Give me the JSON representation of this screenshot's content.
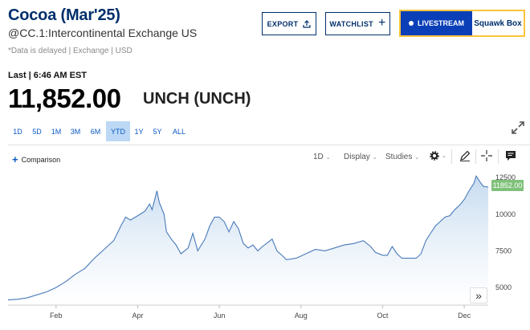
{
  "header": {
    "title": "Cocoa (Mar'25)",
    "symbol": "@CC.1:Intercontinental Exchange US",
    "delayed_note": "*Data is delayed | Exchange | USD"
  },
  "actions": {
    "export_label": "EXPORT",
    "watchlist_label": "WATCHLIST",
    "livestream_label": "LIVESTREAM",
    "squawk_label": "Squawk Box",
    "livestream_border_color": "#ffc439",
    "livestream_bg_color": "#0a3fb8"
  },
  "quote": {
    "last_time": "Last | 6:46 AM EST",
    "price": "11,852.00",
    "change": "UNCH (UNCH)"
  },
  "ranges": {
    "items": [
      "1D",
      "5D",
      "1M",
      "3M",
      "6M",
      "YTD",
      "1Y",
      "5Y",
      "ALL"
    ],
    "active": "YTD"
  },
  "toolbar": {
    "comparison_label": "Comparison",
    "interval": "1D",
    "display": "Display",
    "studies": "Studies"
  },
  "chart_data": {
    "type": "area",
    "series": [
      {
        "values": [
          [
            0.0,
            4150
          ],
          [
            0.02,
            4200
          ],
          [
            0.04,
            4300
          ],
          [
            0.06,
            4500
          ],
          [
            0.08,
            4700
          ],
          [
            0.1,
            5000
          ],
          [
            0.12,
            5400
          ],
          [
            0.14,
            5900
          ],
          [
            0.16,
            6300
          ],
          [
            0.18,
            7000
          ],
          [
            0.2,
            7600
          ],
          [
            0.22,
            8200
          ],
          [
            0.235,
            9200
          ],
          [
            0.245,
            9800
          ],
          [
            0.255,
            9600
          ],
          [
            0.27,
            9900
          ],
          [
            0.285,
            10200
          ],
          [
            0.295,
            10700
          ],
          [
            0.3,
            10300
          ],
          [
            0.31,
            11600
          ],
          [
            0.315,
            10800
          ],
          [
            0.325,
            10000
          ],
          [
            0.33,
            8800
          ],
          [
            0.34,
            8300
          ],
          [
            0.35,
            7900
          ],
          [
            0.36,
            7300
          ],
          [
            0.375,
            7700
          ],
          [
            0.385,
            8700
          ],
          [
            0.395,
            7500
          ],
          [
            0.41,
            8300
          ],
          [
            0.42,
            9200
          ],
          [
            0.43,
            9800
          ],
          [
            0.44,
            9800
          ],
          [
            0.45,
            9500
          ],
          [
            0.46,
            8800
          ],
          [
            0.47,
            9500
          ],
          [
            0.48,
            9000
          ],
          [
            0.49,
            8000
          ],
          [
            0.5,
            7700
          ],
          [
            0.51,
            7900
          ],
          [
            0.52,
            7500
          ],
          [
            0.53,
            7800
          ],
          [
            0.55,
            8300
          ],
          [
            0.56,
            7500
          ],
          [
            0.57,
            7200
          ],
          [
            0.58,
            6900
          ],
          [
            0.6,
            7000
          ],
          [
            0.62,
            7300
          ],
          [
            0.64,
            7600
          ],
          [
            0.66,
            7500
          ],
          [
            0.68,
            7700
          ],
          [
            0.7,
            7900
          ],
          [
            0.72,
            8000
          ],
          [
            0.74,
            8200
          ],
          [
            0.755,
            7800
          ],
          [
            0.765,
            7400
          ],
          [
            0.78,
            7200
          ],
          [
            0.79,
            7200
          ],
          [
            0.8,
            7800
          ],
          [
            0.81,
            7300
          ],
          [
            0.82,
            7000
          ],
          [
            0.83,
            7000
          ],
          [
            0.84,
            7000
          ],
          [
            0.85,
            7000
          ],
          [
            0.86,
            7300
          ],
          [
            0.87,
            8200
          ],
          [
            0.88,
            8700
          ],
          [
            0.89,
            9200
          ],
          [
            0.9,
            9500
          ],
          [
            0.91,
            9800
          ],
          [
            0.92,
            9900
          ],
          [
            0.93,
            10300
          ],
          [
            0.94,
            10600
          ],
          [
            0.95,
            11000
          ],
          [
            0.96,
            11600
          ],
          [
            0.97,
            12100
          ],
          [
            0.975,
            12600
          ],
          [
            0.985,
            12100
          ],
          [
            0.99,
            11900
          ],
          [
            1.0,
            11852
          ]
        ]
      }
    ],
    "x_tick_labels": [
      "Feb",
      "Apr",
      "Jun",
      "Aug",
      "Oct",
      "Dec"
    ],
    "x_tick_positions": [
      0.1,
      0.27,
      0.44,
      0.61,
      0.78,
      0.95
    ],
    "y_ticks": [
      5000,
      7500,
      10000,
      12500
    ],
    "ylim": [
      3800,
      13000
    ],
    "last_value_label": "11852.00",
    "fill_color": "#c6dbf0",
    "line_color": "#4a7ab8",
    "last_label_color": "#7fc17a",
    "grid": false
  }
}
